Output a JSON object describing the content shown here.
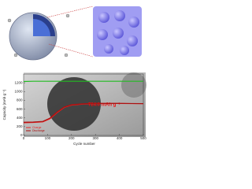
{
  "chart_data": {
    "type": "line",
    "y_label": "Capacity (mAh g⁻¹)",
    "x_label": "Cycle number",
    "annotation": "724.0 mAh g⁻¹",
    "x": [
      0,
      40,
      80,
      110,
      140,
      170,
      200,
      250,
      300,
      350,
      400,
      450,
      500
    ],
    "xlim": [
      0,
      500
    ],
    "xticks": [
      0,
      100,
      200,
      300,
      400,
      500
    ],
    "ylim": [
      0,
      1400
    ],
    "yticks": [
      0,
      200,
      400,
      600,
      800,
      1000,
      1200
    ],
    "series": [
      {
        "color": "#22bb22",
        "values": [
          1230,
          1235,
          1235,
          1235,
          1235,
          1235,
          1235,
          1235,
          1235,
          1235,
          1235,
          1235,
          1235
        ]
      },
      {
        "name": "Charge",
        "color": "#ee2222",
        "values": [
          290,
          295,
          310,
          380,
          520,
          640,
          690,
          715,
          725,
          728,
          728,
          726,
          724
        ]
      },
      {
        "name": "Discharge",
        "color": "#aa1111",
        "values": [
          300,
          305,
          320,
          395,
          535,
          650,
          700,
          722,
          730,
          732,
          731,
          728,
          726
        ]
      }
    ],
    "legend": "lower-left"
  }
}
